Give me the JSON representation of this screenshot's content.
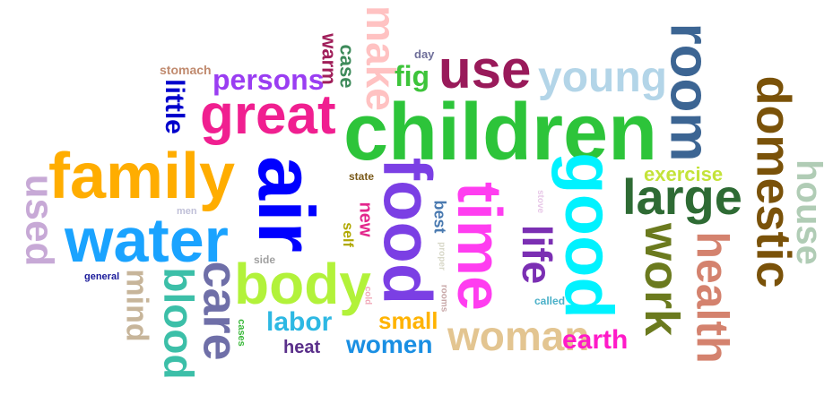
{
  "words": [
    {
      "text": "children",
      "color": "#2dc43a",
      "rotated": false
    },
    {
      "text": "air",
      "color": "#0000ff",
      "rotated": true
    },
    {
      "text": "family",
      "color": "#ffad00",
      "rotated": false
    },
    {
      "text": "water",
      "color": "#1aa3ff",
      "rotated": false
    },
    {
      "text": "food",
      "color": "#7b3fe4",
      "rotated": true
    },
    {
      "text": "time",
      "color": "#ff3df0",
      "rotated": true
    },
    {
      "text": "good",
      "color": "#00f2ff",
      "rotated": true
    },
    {
      "text": "great",
      "color": "#f01f90",
      "rotated": false
    },
    {
      "text": "body",
      "color": "#b2f23a",
      "rotated": false
    },
    {
      "text": "large",
      "color": "#2e6b34",
      "rotated": false
    },
    {
      "text": "use",
      "color": "#991a5a",
      "rotated": false
    },
    {
      "text": "young",
      "color": "#b3d5e8",
      "rotated": false
    },
    {
      "text": "room",
      "color": "#3c6593",
      "rotated": true
    },
    {
      "text": "domestic",
      "color": "#7a5209",
      "rotated": true
    },
    {
      "text": "make",
      "color": "#ffc2c2",
      "rotated": true
    },
    {
      "text": "woman",
      "color": "#e3c591",
      "rotated": false
    },
    {
      "text": "work",
      "color": "#6b7a1e",
      "rotated": true
    },
    {
      "text": "health",
      "color": "#d4826e",
      "rotated": true
    },
    {
      "text": "care",
      "color": "#6f6fa8",
      "rotated": true
    },
    {
      "text": "blood",
      "color": "#3cbfa8",
      "rotated": true
    },
    {
      "text": "house",
      "color": "#b0ccb5",
      "rotated": true
    },
    {
      "text": "used",
      "color": "#c7a9d6",
      "rotated": true
    },
    {
      "text": "persons",
      "color": "#9a3df2",
      "rotated": false
    },
    {
      "text": "mind",
      "color": "#c7b59a",
      "rotated": true
    },
    {
      "text": "life",
      "color": "#7b2fb3",
      "rotated": true
    },
    {
      "text": "labor",
      "color": "#2db8e3",
      "rotated": false
    },
    {
      "text": "women",
      "color": "#1a8fe3",
      "rotated": false
    },
    {
      "text": "earth",
      "color": "#ff1ac8",
      "rotated": false
    },
    {
      "text": "small",
      "color": "#ffb300",
      "rotated": false
    },
    {
      "text": "exercise",
      "color": "#c4e33a",
      "rotated": false
    },
    {
      "text": "fig",
      "color": "#3dc43a",
      "rotated": false
    },
    {
      "text": "little",
      "color": "#0000cc",
      "rotated": true
    },
    {
      "text": "warm",
      "color": "#a01f5a",
      "rotated": true
    },
    {
      "text": "case",
      "color": "#3d8a5a",
      "rotated": true
    },
    {
      "text": "heat",
      "color": "#5a2f8a",
      "rotated": false
    },
    {
      "text": "new",
      "color": "#e3268c",
      "rotated": true
    },
    {
      "text": "best",
      "color": "#4a7ab0",
      "rotated": true
    },
    {
      "text": "self",
      "color": "#b0a800",
      "rotated": true
    },
    {
      "text": "stomach",
      "color": "#c08a6e",
      "rotated": false
    },
    {
      "text": "day",
      "color": "#6f6f9a",
      "rotated": false
    },
    {
      "text": "state",
      "color": "#7a5a1a",
      "rotated": false
    },
    {
      "text": "side",
      "color": "#a0a0a0",
      "rotated": false
    },
    {
      "text": "called",
      "color": "#4ab0c8",
      "rotated": false
    },
    {
      "text": "men",
      "color": "#c0c0d8",
      "rotated": false
    },
    {
      "text": "general",
      "color": "#1a1a9a",
      "rotated": false
    },
    {
      "text": "cases",
      "color": "#3ab83a",
      "rotated": true
    },
    {
      "text": "stove",
      "color": "#e8c8e8",
      "rotated": true
    },
    {
      "text": "proper",
      "color": "#d8d8c8",
      "rotated": true
    },
    {
      "text": "rooms",
      "color": "#c8a8a8",
      "rotated": true
    },
    {
      "text": "cold",
      "color": "#f0a8b8",
      "rotated": true
    }
  ]
}
